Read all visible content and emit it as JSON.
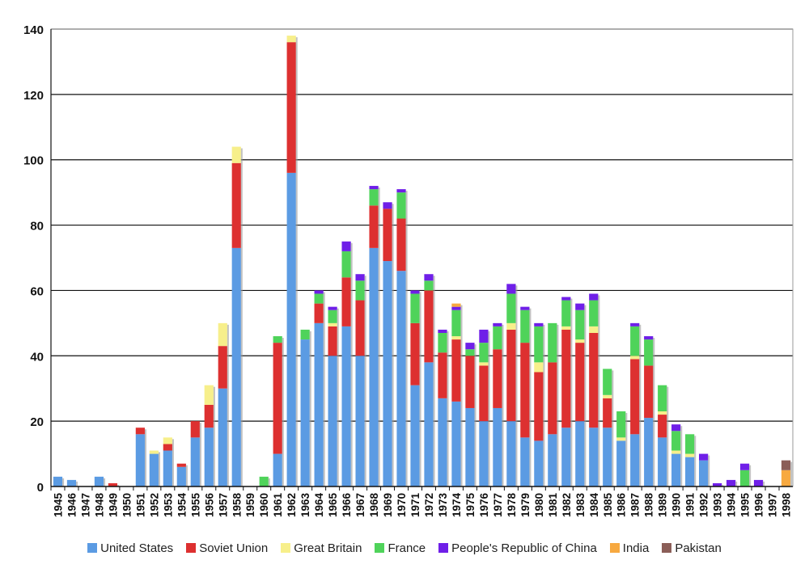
{
  "chart_data": {
    "type": "bar",
    "stacked": true,
    "title": "",
    "xlabel": "",
    "ylabel": "",
    "ylim": [
      0,
      140
    ],
    "yticks": [
      0,
      20,
      40,
      60,
      80,
      100,
      120,
      140
    ],
    "grid": true,
    "legend_position": "bottom",
    "categories": [
      "1945",
      "1946",
      "1947",
      "1948",
      "1949",
      "1950",
      "1951",
      "1952",
      "1953",
      "1954",
      "1955",
      "1956",
      "1957",
      "1958",
      "1959",
      "1960",
      "1961",
      "1962",
      "1963",
      "1964",
      "1965",
      "1966",
      "1967",
      "1968",
      "1969",
      "1970",
      "1971",
      "1972",
      "1973",
      "1974",
      "1975",
      "1976",
      "1977",
      "1978",
      "1979",
      "1980",
      "1981",
      "1982",
      "1983",
      "1984",
      "1985",
      "1986",
      "1987",
      "1988",
      "1989",
      "1990",
      "1991",
      "1992",
      "1993",
      "1994",
      "1995",
      "1996",
      "1997",
      "1998"
    ],
    "series": [
      {
        "name": "United States",
        "color": "#5B9BE3",
        "values": [
          3,
          2,
          0,
          3,
          0,
          0,
          16,
          10,
          11,
          6,
          15,
          18,
          30,
          73,
          0,
          0,
          10,
          96,
          45,
          50,
          40,
          49,
          40,
          73,
          69,
          66,
          31,
          38,
          27,
          26,
          24,
          20,
          24,
          20,
          15,
          14,
          16,
          18,
          20,
          18,
          18,
          14,
          16,
          21,
          15,
          10,
          9,
          8,
          0,
          0,
          0,
          0,
          0,
          0
        ]
      },
      {
        "name": "Soviet Union",
        "color": "#DD3030",
        "values": [
          0,
          0,
          0,
          0,
          1,
          0,
          2,
          0,
          2,
          1,
          5,
          7,
          13,
          26,
          0,
          0,
          34,
          40,
          0,
          6,
          9,
          15,
          17,
          13,
          16,
          16,
          19,
          22,
          14,
          19,
          16,
          17,
          18,
          28,
          29,
          21,
          22,
          30,
          24,
          29,
          9,
          0,
          23,
          16,
          7,
          0,
          0,
          0,
          0,
          0,
          0,
          0,
          0,
          0
        ]
      },
      {
        "name": "Great Britain",
        "color": "#F7EF8B",
        "values": [
          0,
          0,
          0,
          0,
          0,
          0,
          0,
          1,
          2,
          0,
          0,
          6,
          7,
          5,
          0,
          0,
          0,
          2,
          0,
          0,
          1,
          0,
          0,
          0,
          0,
          0,
          0,
          0,
          0,
          1,
          0,
          1,
          0,
          2,
          0,
          3,
          0,
          1,
          1,
          2,
          1,
          1,
          1,
          0,
          1,
          1,
          1,
          0,
          0,
          0,
          0,
          0,
          0,
          0
        ]
      },
      {
        "name": "France",
        "color": "#4FD35A",
        "values": [
          0,
          0,
          0,
          0,
          0,
          0,
          0,
          0,
          0,
          0,
          0,
          0,
          0,
          0,
          0,
          3,
          2,
          0,
          3,
          3,
          4,
          8,
          6,
          5,
          0,
          8,
          9,
          3,
          6,
          8,
          2,
          6,
          7,
          9,
          10,
          11,
          12,
          8,
          9,
          8,
          8,
          8,
          9,
          8,
          8,
          6,
          6,
          0,
          0,
          0,
          5,
          0,
          0,
          0
        ]
      },
      {
        "name": "People's Republic of China",
        "color": "#6F1FE8",
        "values": [
          0,
          0,
          0,
          0,
          0,
          0,
          0,
          0,
          0,
          0,
          0,
          0,
          0,
          0,
          0,
          0,
          0,
          0,
          0,
          1,
          1,
          3,
          2,
          1,
          2,
          1,
          1,
          2,
          1,
          1,
          2,
          4,
          1,
          3,
          1,
          1,
          0,
          1,
          2,
          2,
          0,
          0,
          1,
          1,
          0,
          2,
          0,
          2,
          1,
          2,
          2,
          2,
          0,
          0
        ]
      },
      {
        "name": "India",
        "color": "#F7A940",
        "values": [
          0,
          0,
          0,
          0,
          0,
          0,
          0,
          0,
          0,
          0,
          0,
          0,
          0,
          0,
          0,
          0,
          0,
          0,
          0,
          0,
          0,
          0,
          0,
          0,
          0,
          0,
          0,
          0,
          0,
          1,
          0,
          0,
          0,
          0,
          0,
          0,
          0,
          0,
          0,
          0,
          0,
          0,
          0,
          0,
          0,
          0,
          0,
          0,
          0,
          0,
          0,
          0,
          0,
          5
        ]
      },
      {
        "name": "Pakistan",
        "color": "#8B5E58",
        "values": [
          0,
          0,
          0,
          0,
          0,
          0,
          0,
          0,
          0,
          0,
          0,
          0,
          0,
          0,
          0,
          0,
          0,
          0,
          0,
          0,
          0,
          0,
          0,
          0,
          0,
          0,
          0,
          0,
          0,
          0,
          0,
          0,
          0,
          0,
          0,
          0,
          0,
          0,
          0,
          0,
          0,
          0,
          0,
          0,
          0,
          0,
          0,
          0,
          0,
          0,
          0,
          0,
          0,
          3
        ]
      }
    ]
  }
}
